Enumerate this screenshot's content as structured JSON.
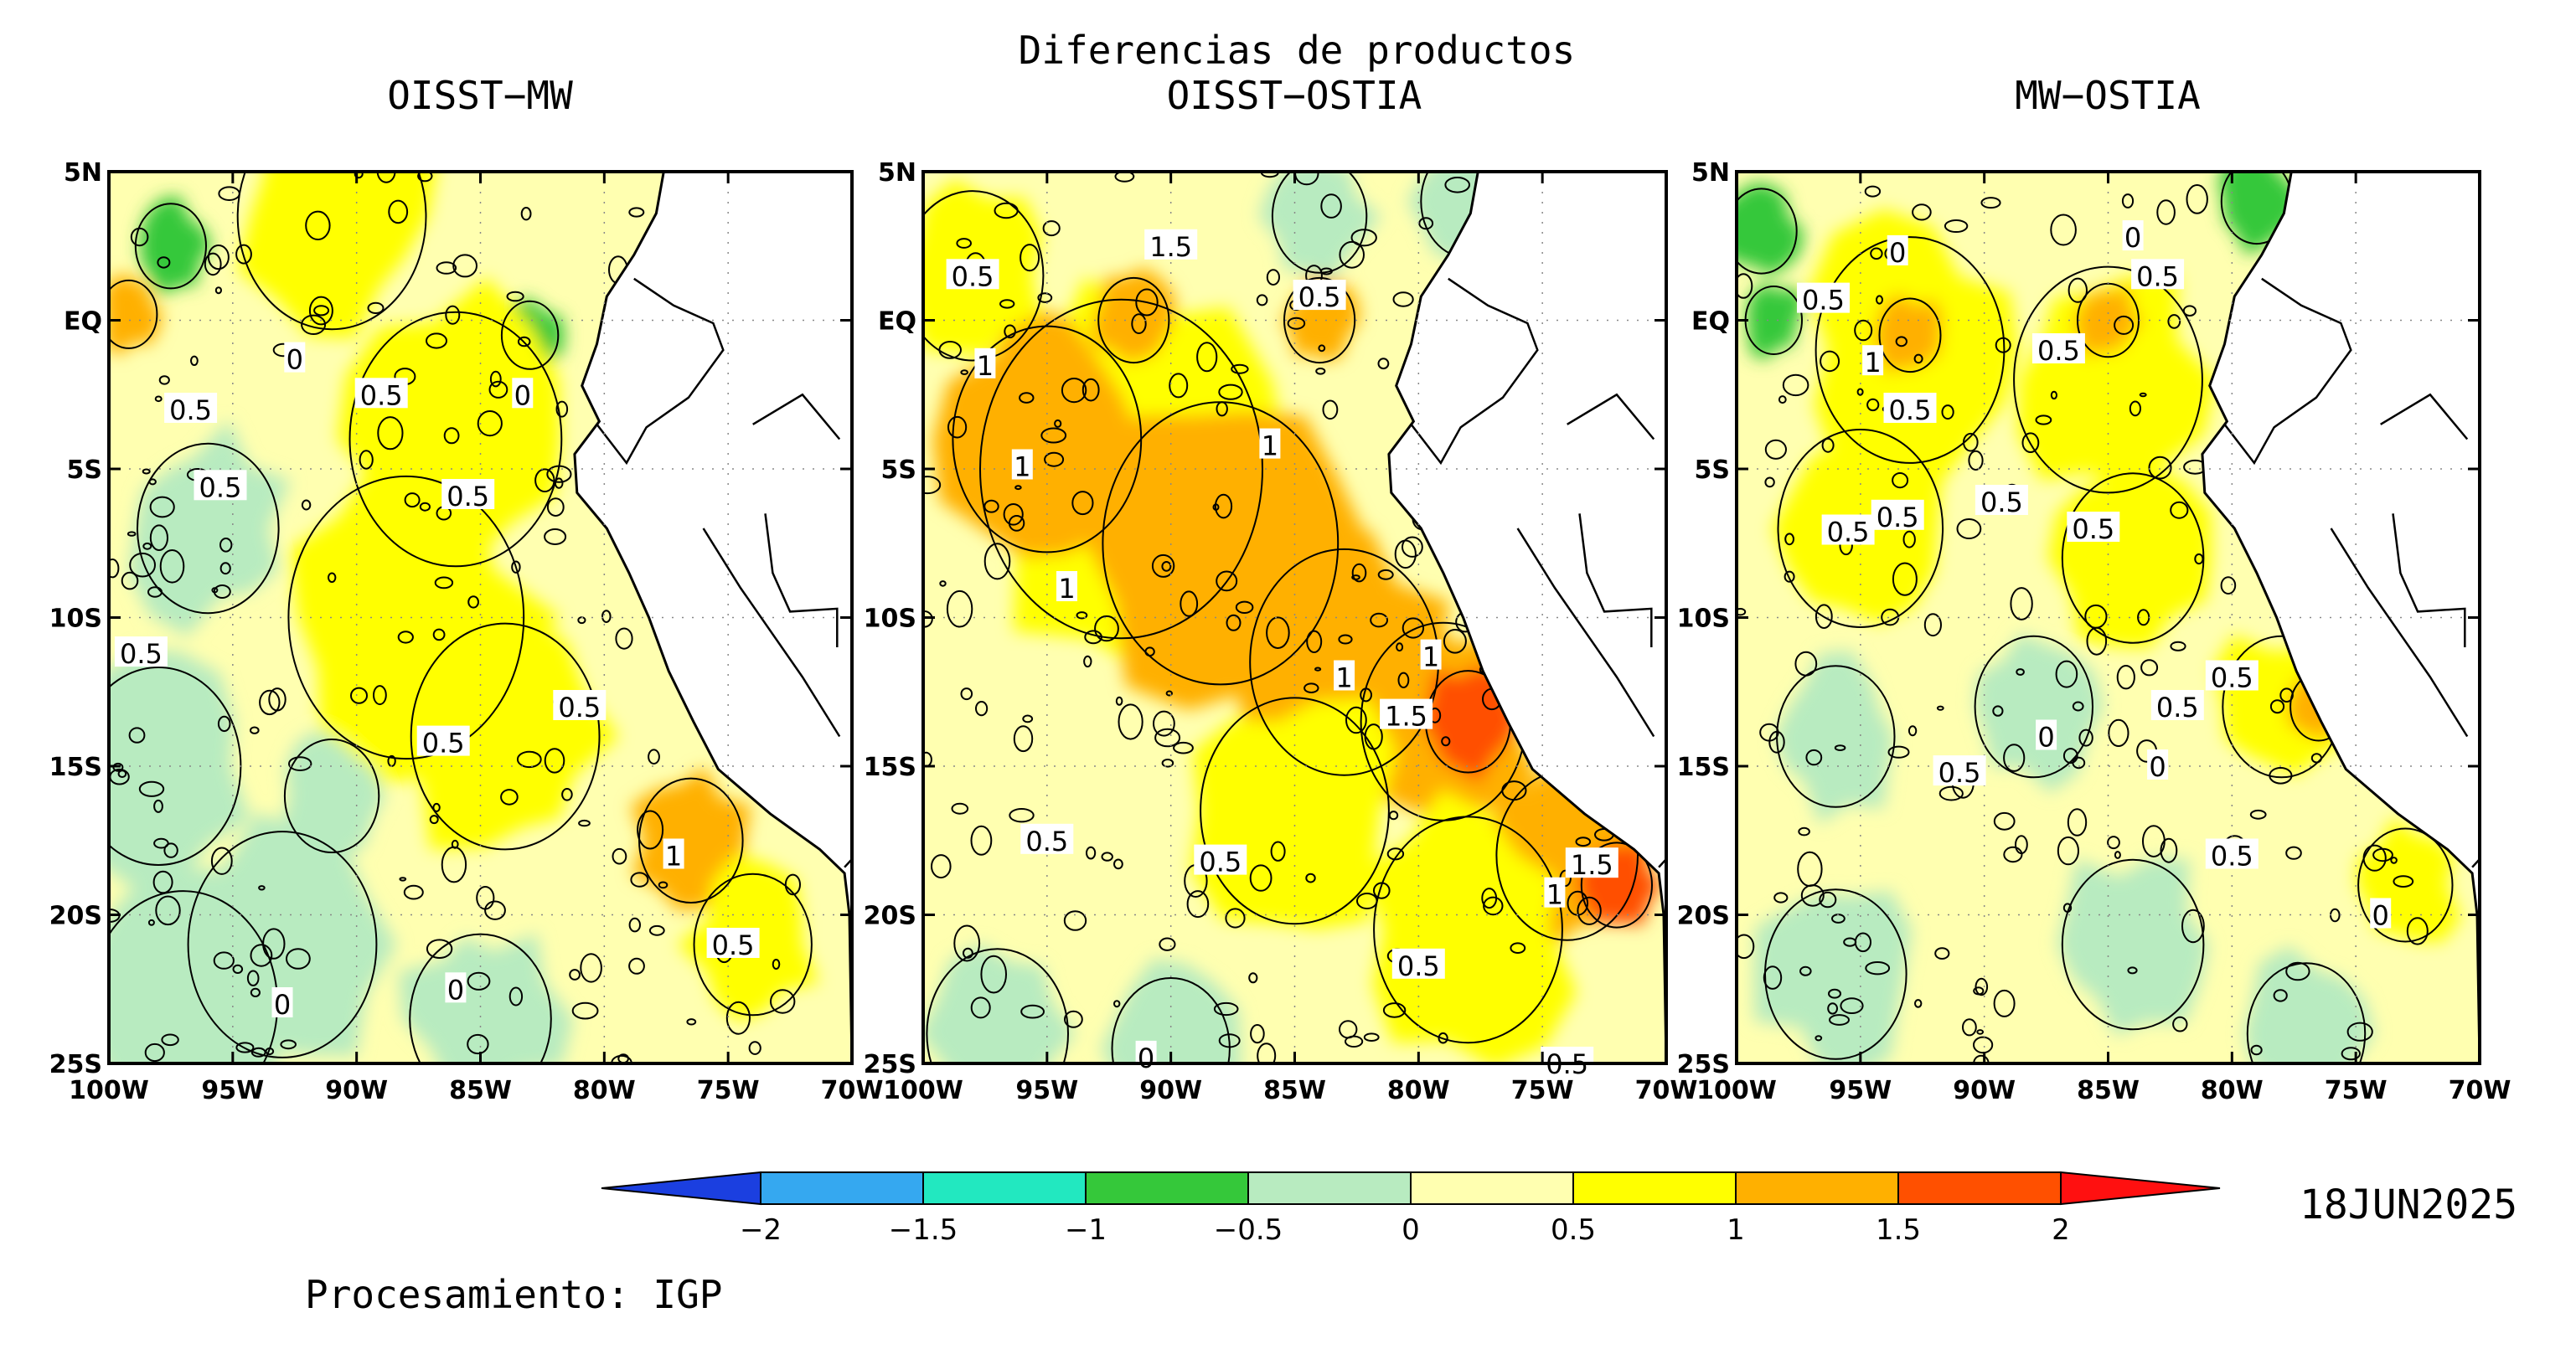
{
  "title": "Diferencias de productos",
  "date": "18JUN2025",
  "credit": "Procesamiento: IGP",
  "palette": {
    "-2": "#1b3fe0",
    "-1.5": "#35a8f0",
    "-1": "#22e8c0",
    "-0.5": "#35c83a",
    "0": "#b8ebc0",
    "0.5": "#ffffb0",
    "1": "#ffff00",
    "1.5": "#ffb000",
    "2": "#ff5000",
    "2.5": "#ff1010",
    "land": "#ffffff",
    "contour": "#000000"
  },
  "colorbar": {
    "ticks": [
      "−2",
      "−1.5",
      "−1",
      "−0.5",
      "0",
      "0.5",
      "1",
      "1.5",
      "2"
    ],
    "levels": [
      -2,
      -1.5,
      -1,
      -0.5,
      0,
      0.5,
      1,
      1.5,
      2
    ]
  },
  "axes": {
    "lon_ticks": [
      "100W",
      "95W",
      "90W",
      "85W",
      "80W",
      "75W",
      "70W"
    ],
    "lat_ticks": [
      "5N",
      "EQ",
      "5S",
      "10S",
      "15S",
      "20S",
      "25S"
    ],
    "lon_range": [
      -100,
      -70
    ],
    "lat_range": [
      -25,
      5
    ],
    "grid": "dotted"
  },
  "panels": [
    {
      "title": "OISST−MW",
      "base": "0.5",
      "patches": [
        {
          "lon": -97.5,
          "lat": 2.5,
          "r": 1.5,
          "level": "-0.5"
        },
        {
          "lon": -99.2,
          "lat": 0.2,
          "r": 1.2,
          "level": "1.5"
        },
        {
          "lon": -83.0,
          "lat": -0.5,
          "r": 1.2,
          "level": "-0.5"
        },
        {
          "lon": -96.0,
          "lat": -7.0,
          "r": 3.0,
          "level": "0"
        },
        {
          "lon": -91.0,
          "lat": 3.5,
          "r": 4.0,
          "level": "1"
        },
        {
          "lon": -86.0,
          "lat": -4.0,
          "r": 4.5,
          "level": "1"
        },
        {
          "lon": -88.0,
          "lat": -10.0,
          "r": 5.0,
          "level": "1"
        },
        {
          "lon": -84.0,
          "lat": -14.0,
          "r": 4.0,
          "level": "1"
        },
        {
          "lon": -76.5,
          "lat": -17.5,
          "r": 2.2,
          "level": "1.5"
        },
        {
          "lon": -74.0,
          "lat": -21.0,
          "r": 2.5,
          "level": "1"
        },
        {
          "lon": -93.0,
          "lat": -21.0,
          "r": 4.0,
          "level": "0"
        },
        {
          "lon": -97.0,
          "lat": -23.0,
          "r": 4.0,
          "level": "0"
        },
        {
          "lon": -85.0,
          "lat": -23.5,
          "r": 3.0,
          "level": "0"
        },
        {
          "lon": -98.0,
          "lat": -15.0,
          "r": 3.5,
          "level": "0"
        },
        {
          "lon": -91.0,
          "lat": -16.0,
          "r": 2.0,
          "level": "0"
        }
      ],
      "labels": [
        {
          "lon": -92.5,
          "lat": -1.3,
          "text": "0"
        },
        {
          "lon": -96.7,
          "lat": -3.0,
          "text": "0.5"
        },
        {
          "lon": -89.0,
          "lat": -2.5,
          "text": "0.5"
        },
        {
          "lon": -83.3,
          "lat": -2.5,
          "text": "0"
        },
        {
          "lon": -95.5,
          "lat": -5.6,
          "text": "0.5"
        },
        {
          "lon": -85.5,
          "lat": -5.9,
          "text": "0.5"
        },
        {
          "lon": -98.7,
          "lat": -11.2,
          "text": "0.5"
        },
        {
          "lon": -81.0,
          "lat": -13.0,
          "text": "0.5"
        },
        {
          "lon": -86.5,
          "lat": -14.2,
          "text": "0.5"
        },
        {
          "lon": -77.2,
          "lat": -18.0,
          "text": "1"
        },
        {
          "lon": -74.8,
          "lat": -21.0,
          "text": "0.5"
        },
        {
          "lon": -86.0,
          "lat": -22.5,
          "text": "0"
        },
        {
          "lon": -93.0,
          "lat": -23.0,
          "text": "0"
        }
      ]
    },
    {
      "title": "OISST−OSTIA",
      "base": "0.5",
      "patches": [
        {
          "lon": -92.0,
          "lat": -5.0,
          "r": 6.0,
          "level": "1"
        },
        {
          "lon": -88.0,
          "lat": -7.5,
          "r": 5.0,
          "level": "1.5"
        },
        {
          "lon": -95.0,
          "lat": -4.0,
          "r": 4.0,
          "level": "1.5"
        },
        {
          "lon": -83.0,
          "lat": -11.5,
          "r": 4.0,
          "level": "1.5"
        },
        {
          "lon": -79.0,
          "lat": -13.5,
          "r": 3.5,
          "level": "1.5"
        },
        {
          "lon": -78.0,
          "lat": -13.5,
          "r": 1.8,
          "level": "2"
        },
        {
          "lon": -74.0,
          "lat": -18.0,
          "r": 3.0,
          "level": "1.5"
        },
        {
          "lon": -72.0,
          "lat": -19.0,
          "r": 1.5,
          "level": "2"
        },
        {
          "lon": -85.0,
          "lat": -16.5,
          "r": 4.0,
          "level": "1"
        },
        {
          "lon": -78.0,
          "lat": -20.5,
          "r": 4.0,
          "level": "1"
        },
        {
          "lon": -98.0,
          "lat": 1.5,
          "r": 3.0,
          "level": "1"
        },
        {
          "lon": -91.5,
          "lat": 0.0,
          "r": 1.5,
          "level": "1.5"
        },
        {
          "lon": -84.0,
          "lat": 0.0,
          "r": 1.5,
          "level": "1.5"
        },
        {
          "lon": -78.0,
          "lat": 4.0,
          "r": 2.0,
          "level": "0"
        },
        {
          "lon": -84.0,
          "lat": 3.5,
          "r": 2.0,
          "level": "0"
        },
        {
          "lon": -97.0,
          "lat": -24.0,
          "r": 3.0,
          "level": "0"
        },
        {
          "lon": -90.0,
          "lat": -24.5,
          "r": 2.5,
          "level": "0"
        }
      ],
      "labels": [
        {
          "lon": -98.0,
          "lat": 1.5,
          "text": "0.5"
        },
        {
          "lon": -90.0,
          "lat": 2.5,
          "text": "1.5"
        },
        {
          "lon": -84.0,
          "lat": 0.8,
          "text": "0.5"
        },
        {
          "lon": -97.5,
          "lat": -1.5,
          "text": "1"
        },
        {
          "lon": -96.0,
          "lat": -4.9,
          "text": "1"
        },
        {
          "lon": -86.0,
          "lat": -4.2,
          "text": "1"
        },
        {
          "lon": -94.2,
          "lat": -9.0,
          "text": "1"
        },
        {
          "lon": -83.0,
          "lat": -12.0,
          "text": "1"
        },
        {
          "lon": -79.5,
          "lat": -11.3,
          "text": "1"
        },
        {
          "lon": -80.5,
          "lat": -13.3,
          "text": "1.5"
        },
        {
          "lon": -73.0,
          "lat": -18.3,
          "text": "1.5"
        },
        {
          "lon": -74.5,
          "lat": -19.3,
          "text": "1"
        },
        {
          "lon": -95.0,
          "lat": -17.5,
          "text": "0.5"
        },
        {
          "lon": -88.0,
          "lat": -18.2,
          "text": "0.5"
        },
        {
          "lon": -80.0,
          "lat": -21.7,
          "text": "0.5"
        },
        {
          "lon": -91.0,
          "lat": -24.8,
          "text": "0"
        },
        {
          "lon": -74.0,
          "lat": -25.0,
          "text": "0.5"
        }
      ]
    },
    {
      "title": "MW−OSTIA",
      "base": "0.5",
      "patches": [
        {
          "lon": -99.0,
          "lat": 3.0,
          "r": 1.5,
          "level": "-0.5"
        },
        {
          "lon": -98.5,
          "lat": 0.0,
          "r": 1.2,
          "level": "-0.5"
        },
        {
          "lon": -79.0,
          "lat": 4.0,
          "r": 1.5,
          "level": "-0.5"
        },
        {
          "lon": -93.0,
          "lat": -1.0,
          "r": 4.0,
          "level": "1"
        },
        {
          "lon": -85.0,
          "lat": -2.0,
          "r": 4.0,
          "level": "1"
        },
        {
          "lon": -95.0,
          "lat": -7.0,
          "r": 3.5,
          "level": "1"
        },
        {
          "lon": -84.0,
          "lat": -8.0,
          "r": 3.0,
          "level": "1"
        },
        {
          "lon": -78.0,
          "lat": -13.0,
          "r": 2.5,
          "level": "1"
        },
        {
          "lon": -76.5,
          "lat": -13.0,
          "r": 1.2,
          "level": "1.5"
        },
        {
          "lon": -73.0,
          "lat": -19.0,
          "r": 2.0,
          "level": "1"
        },
        {
          "lon": -93.0,
          "lat": -0.5,
          "r": 1.3,
          "level": "1.5"
        },
        {
          "lon": -85.0,
          "lat": 0.0,
          "r": 1.3,
          "level": "1.5"
        },
        {
          "lon": -96.0,
          "lat": -14.0,
          "r": 2.5,
          "level": "0"
        },
        {
          "lon": -88.0,
          "lat": -13.0,
          "r": 2.5,
          "level": "0"
        },
        {
          "lon": -96.0,
          "lat": -22.0,
          "r": 3.0,
          "level": "0"
        },
        {
          "lon": -84.0,
          "lat": -21.0,
          "r": 3.0,
          "level": "0"
        },
        {
          "lon": -77.0,
          "lat": -24.0,
          "r": 2.5,
          "level": "0"
        }
      ],
      "labels": [
        {
          "lon": -93.5,
          "lat": 2.3,
          "text": "0"
        },
        {
          "lon": -84.0,
          "lat": 2.8,
          "text": "0"
        },
        {
          "lon": -96.5,
          "lat": 0.7,
          "text": "0.5"
        },
        {
          "lon": -83.0,
          "lat": 1.5,
          "text": "0.5"
        },
        {
          "lon": -87.0,
          "lat": -1.0,
          "text": "0.5"
        },
        {
          "lon": -94.5,
          "lat": -1.4,
          "text": "1"
        },
        {
          "lon": -93.0,
          "lat": -3.0,
          "text": "0.5"
        },
        {
          "lon": -95.5,
          "lat": -7.1,
          "text": "0.5"
        },
        {
          "lon": -93.5,
          "lat": -6.6,
          "text": "0.5"
        },
        {
          "lon": -89.3,
          "lat": -6.1,
          "text": "0.5"
        },
        {
          "lon": -85.6,
          "lat": -7.0,
          "text": "0.5"
        },
        {
          "lon": -80.0,
          "lat": -12.0,
          "text": "0.5"
        },
        {
          "lon": -82.2,
          "lat": -13.0,
          "text": "0.5"
        },
        {
          "lon": -87.5,
          "lat": -14.0,
          "text": "0"
        },
        {
          "lon": -91.0,
          "lat": -15.2,
          "text": "0.5"
        },
        {
          "lon": -83.0,
          "lat": -15.0,
          "text": "0"
        },
        {
          "lon": -80.0,
          "lat": -18.0,
          "text": "0.5"
        },
        {
          "lon": -74.0,
          "lat": -20.0,
          "text": "0"
        }
      ]
    }
  ]
}
